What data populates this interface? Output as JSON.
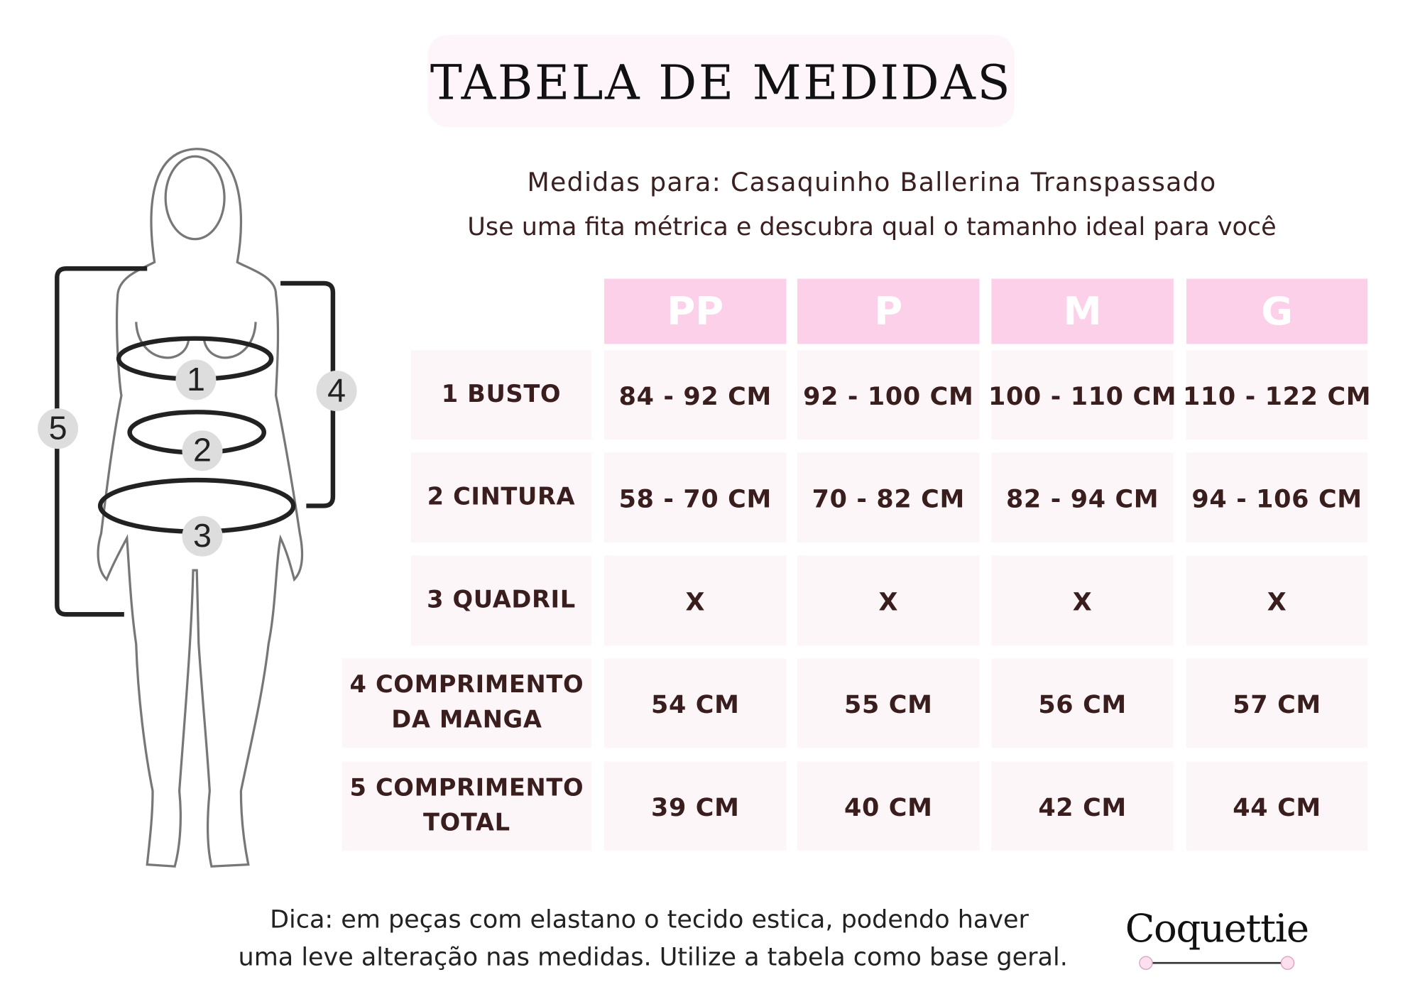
{
  "header": {
    "title": "TABELA DE MEDIDAS",
    "subtitle": "Medidas para: Casaquinho Ballerina Transpassado",
    "instruction": "Use uma fita métrica e descubra qual o tamanho ideal para você"
  },
  "figure": {
    "markers": [
      "1",
      "2",
      "3",
      "4",
      "5"
    ]
  },
  "table": {
    "columns": [
      "PP",
      "P",
      "M",
      "G"
    ],
    "rows": [
      {
        "label": [
          "1 BUSTO"
        ],
        "cells": [
          "84 - 92 CM",
          "92 - 100 CM",
          "100 - 110 CM",
          "110 - 122 CM"
        ]
      },
      {
        "label": [
          "2  CINTURA"
        ],
        "cells": [
          "58 - 70 CM",
          "70 - 82 CM",
          "82 - 94 CM",
          "94 - 106 CM"
        ]
      },
      {
        "label": [
          "3  QUADRIL"
        ],
        "cells": [
          "X",
          "X",
          "X",
          "X"
        ]
      },
      {
        "label": [
          "4  COMPRIMENTO",
          "DA MANGA"
        ],
        "cells": [
          "54 CM",
          "55 CM",
          "56 CM",
          "57 CM"
        ]
      },
      {
        "label": [
          "5  COMPRIMENTO",
          "TOTAL"
        ],
        "cells": [
          "39 CM",
          "40 CM",
          "42 CM",
          "44 CM"
        ]
      }
    ]
  },
  "footer": {
    "tip": [
      "Dica: em peças com elastano o tecido estica, podendo haver",
      "uma leve alteração nas medidas. Utilize a tabela como base geral."
    ],
    "brand": "Coquettie"
  }
}
